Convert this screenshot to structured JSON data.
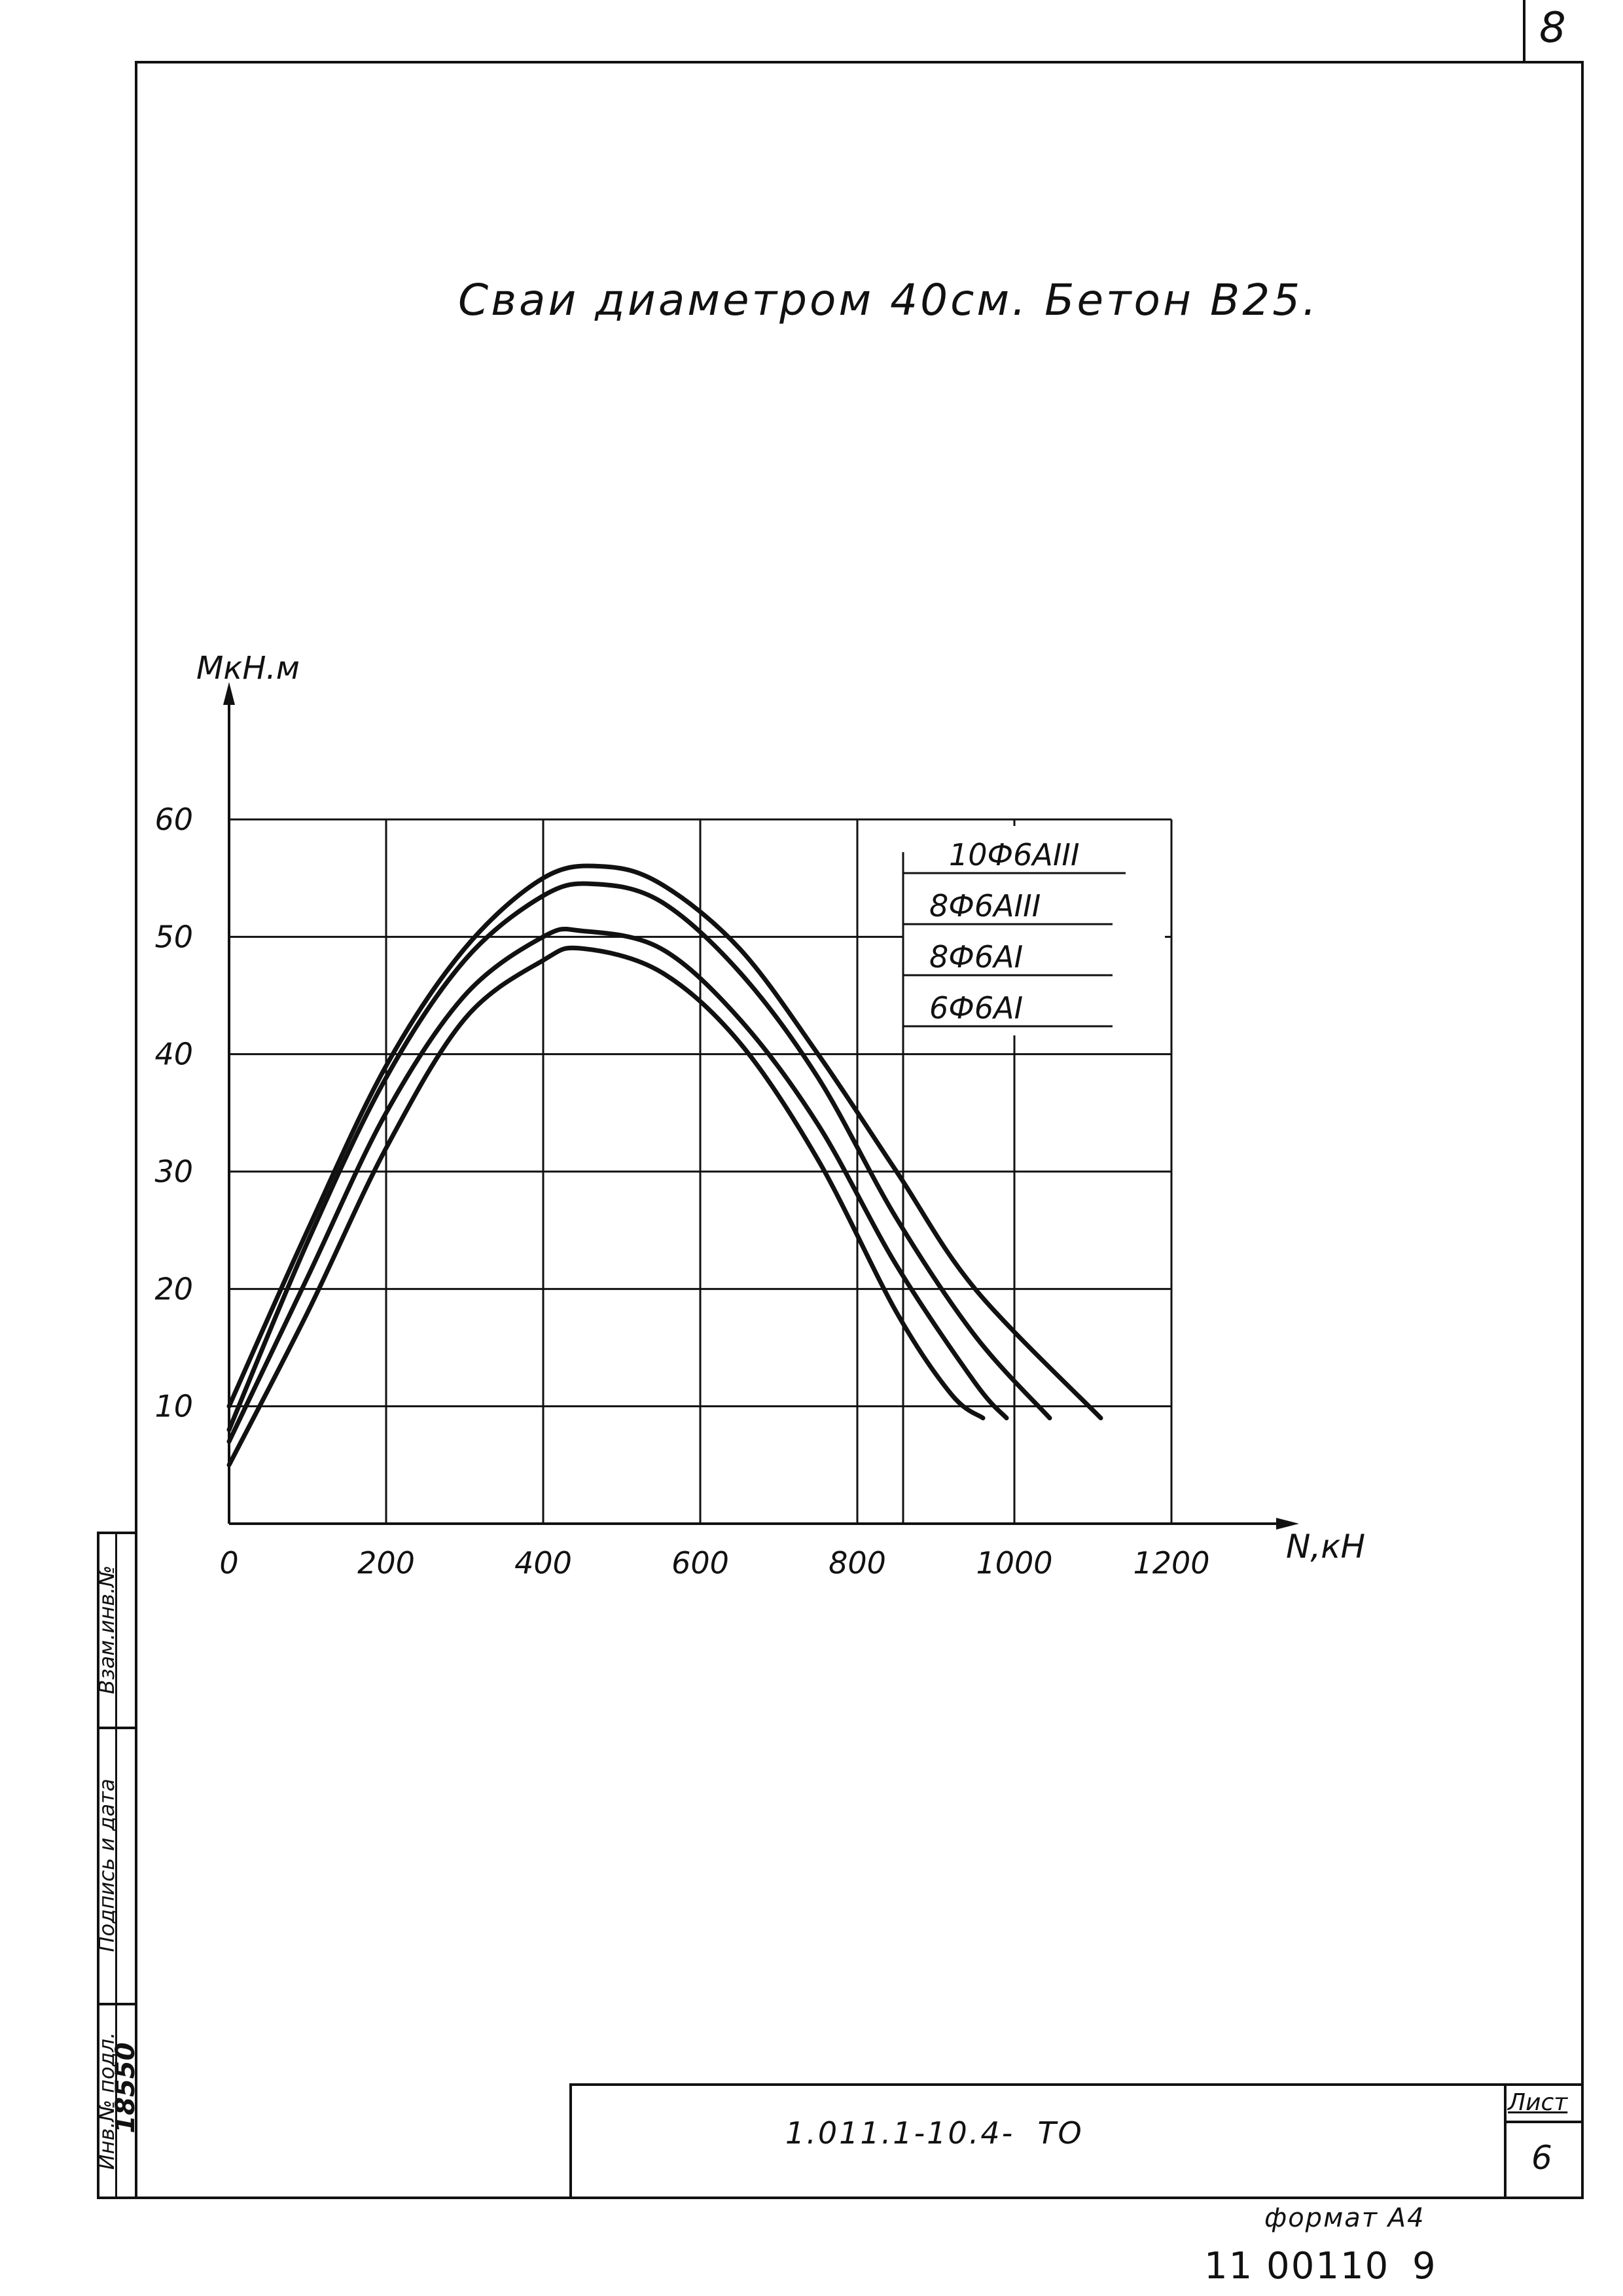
{
  "sheet": {
    "corner_number": "8",
    "title": "Сваи диаметром 40см. Бетон В25.",
    "doc_code": "1.011.1-10.4-  ТО",
    "sheet_label": "Лист",
    "sheet_number": "6",
    "format_label": "формат А4",
    "archive_number": "11 00110",
    "archive_page": "9"
  },
  "side_stamp": {
    "inv_podl_label": "Инв.№ подл.",
    "inv_podl_value": "18550",
    "sign_date_label": "Подпись и дата",
    "vzam_inv_label": "Взам.инв.№"
  },
  "chart_data": {
    "type": "line",
    "title": "Сваи диаметром 40см. Бетон В25.",
    "xlabel": "N,кН",
    "ylabel": "МкН.м",
    "xlim": [
      0,
      1200
    ],
    "ylim": [
      0,
      60
    ],
    "x_ticks": [
      "0",
      "200",
      "400",
      "600",
      "800",
      "1000",
      "1200"
    ],
    "y_ticks": [
      "10",
      "20",
      "30",
      "40",
      "50",
      "60"
    ],
    "grid": true,
    "legend_position": "top-right",
    "series": [
      {
        "name": "10Ф6АIII",
        "x": [
          0,
          100,
          200,
          300,
          400,
          475,
          550,
          650,
          750,
          850,
          950,
          1110
        ],
        "y": [
          10,
          25,
          39,
          49,
          55,
          56,
          54.5,
          49,
          40,
          30,
          20,
          9
        ]
      },
      {
        "name": "8Ф6АIII",
        "x": [
          0,
          100,
          200,
          300,
          400,
          465,
          550,
          650,
          750,
          850,
          950,
          1045
        ],
        "y": [
          8,
          24,
          38,
          48,
          53.5,
          54.5,
          53,
          47,
          38,
          26,
          16,
          9
        ]
      },
      {
        "name": "8Ф6АI",
        "x": [
          0,
          100,
          200,
          300,
          400,
          450,
          550,
          650,
          750,
          850,
          950,
          990
        ],
        "y": [
          7,
          21,
          35,
          45,
          50,
          50.5,
          49,
          43,
          34,
          22,
          12,
          9
        ]
      },
      {
        "name": "6Ф6АI",
        "x": [
          0,
          100,
          200,
          300,
          400,
          450,
          550,
          650,
          750,
          850,
          920,
          960
        ],
        "y": [
          5,
          18,
          32,
          43,
          48,
          49,
          47,
          41,
          31,
          18,
          11,
          9
        ]
      }
    ]
  }
}
